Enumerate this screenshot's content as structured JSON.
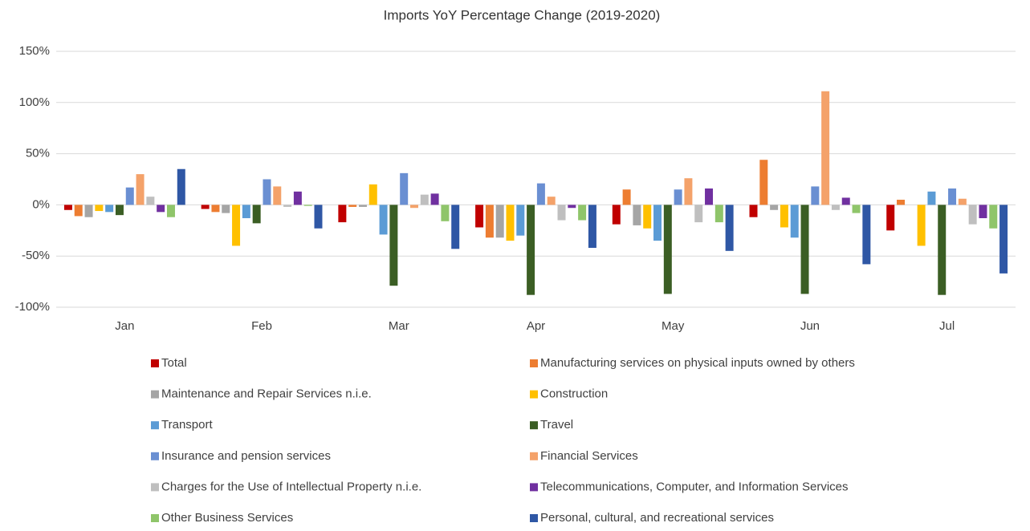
{
  "chart_data": {
    "type": "bar",
    "title": "Imports YoY Percentage Change (2019-2020)",
    "categories": [
      "Jan",
      "Feb",
      "Mar",
      "Apr",
      "May",
      "Jun",
      "Jul"
    ],
    "series": [
      {
        "name": "Total",
        "color": "#c00000",
        "values": [
          -5,
          -4,
          -17,
          -22,
          -19,
          -12,
          -25
        ]
      },
      {
        "name": "Manufacturing services on physical inputs owned by others",
        "color": "#ed7d31",
        "values": [
          -11,
          -7,
          -2,
          -32,
          15,
          44,
          5
        ]
      },
      {
        "name": "Maintenance and Repair Services n.i.e.",
        "color": "#a5a5a5",
        "values": [
          -12,
          -8,
          -2,
          -32,
          -20,
          -5,
          0
        ]
      },
      {
        "name": "Construction",
        "color": "#ffc000",
        "values": [
          -6,
          -40,
          20,
          -35,
          -23,
          -22,
          -40
        ]
      },
      {
        "name": "Transport",
        "color": "#5b9bd5",
        "values": [
          -7,
          -13,
          -29,
          -30,
          -35,
          -32,
          13
        ]
      },
      {
        "name": "Travel",
        "color": "#3b5e24",
        "values": [
          -10,
          -18,
          -79,
          -88,
          -87,
          -87,
          -88
        ]
      },
      {
        "name": "Insurance and pension services",
        "color": "#6a8fd2",
        "values": [
          17,
          25,
          31,
          21,
          15,
          18,
          16
        ]
      },
      {
        "name": "Financial Services",
        "color": "#f4a26a",
        "values": [
          30,
          18,
          -3,
          8,
          26,
          111,
          6
        ]
      },
      {
        "name": "Charges for the Use of Intellectual Property n.i.e.",
        "color": "#bfbfbf",
        "values": [
          8,
          -2,
          10,
          -15,
          -17,
          -5,
          -19
        ]
      },
      {
        "name": "Telecommunications, Computer, and Information Services",
        "color": "#7030a0",
        "values": [
          -7,
          13,
          11,
          -3,
          16,
          7,
          -13
        ]
      },
      {
        "name": "Other Business Services",
        "color": "#8fc56a",
        "values": [
          -12,
          -1,
          -16,
          -15,
          -17,
          -8,
          -23
        ]
      },
      {
        "name": "Personal, cultural, and recreational services",
        "color": "#2f57a5",
        "values": [
          35,
          -23,
          -43,
          -42,
          -45,
          -58,
          -67
        ]
      }
    ],
    "ylim": [
      -100,
      150
    ],
    "yticks": [
      {
        "value": -100,
        "label": "-100%"
      },
      {
        "value": -50,
        "label": "-50%"
      },
      {
        "value": 0,
        "label": "0%"
      },
      {
        "value": 50,
        "label": "50%"
      },
      {
        "value": 100,
        "label": "100%"
      },
      {
        "value": 150,
        "label": "150%"
      }
    ],
    "grid": true,
    "legend": "bottom"
  }
}
